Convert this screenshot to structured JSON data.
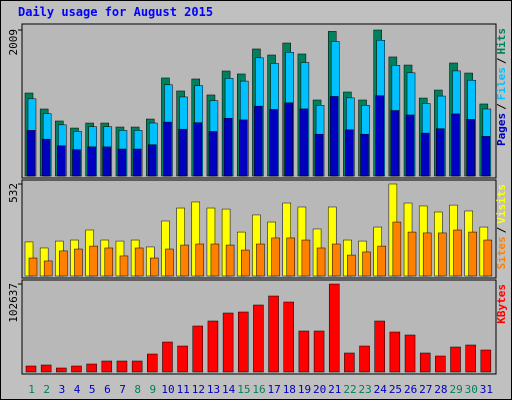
{
  "title": "Daily usage for August 2015",
  "legend_separator": "/",
  "chart_data": [
    {
      "type": "bar",
      "ylim": [
        0,
        2009
      ],
      "yticks": [
        2009
      ],
      "series": [
        {
          "name": "Hits",
          "color": "#00805c",
          "values": [
            1142,
            922,
            757,
            660,
            729,
            729,
            674,
            674,
            784,
            1349,
            1170,
            1335,
            1115,
            1445,
            1404,
            1748,
            1665,
            1830,
            1679,
            1046,
            1990,
            1156,
            1046,
            2009,
            1638,
            1527,
            1073,
            1183,
            1555,
            1417,
            991
          ]
        },
        {
          "name": "Files",
          "color": "#00c0ff",
          "values": [
            1062,
            857,
            704,
            614,
            678,
            678,
            627,
            627,
            729,
            1255,
            1088,
            1242,
            1037,
            1344,
            1306,
            1626,
            1548,
            1702,
            1561,
            973,
            1851,
            1075,
            973,
            1868,
            1523,
            1420,
            998,
            1100,
            1446,
            1318,
            922
          ]
        },
        {
          "name": "Pages",
          "color": "#0000c0",
          "values": [
            628,
            507,
            416,
            363,
            401,
            401,
            371,
            371,
            431,
            742,
            644,
            734,
            613,
            795,
            772,
            961,
            916,
            1007,
            923,
            575,
            1095,
            636,
            575,
            1105,
            901,
            840,
            590,
            651,
            855,
            779,
            545
          ]
        }
      ]
    },
    {
      "type": "bar",
      "ylim": [
        0,
        532
      ],
      "yticks": [
        532
      ],
      "series": [
        {
          "name": "Visits",
          "color": "#ffff00",
          "values": [
            197,
            162,
            202,
            208,
            266,
            208,
            202,
            208,
            168,
            318,
            393,
            428,
            393,
            387,
            254,
            353,
            312,
            422,
            399,
            272,
            399,
            208,
            202,
            283,
            532,
            422,
            405,
            370,
            410,
            376,
            283
          ]
        },
        {
          "name": "Sites",
          "color": "#ff8000",
          "values": [
            104,
            87,
            145,
            156,
            173,
            162,
            116,
            162,
            104,
            156,
            179,
            185,
            185,
            179,
            150,
            185,
            220,
            220,
            208,
            162,
            185,
            121,
            139,
            173,
            312,
            254,
            249,
            249,
            266,
            254,
            208
          ]
        }
      ]
    },
    {
      "type": "bar",
      "ylim": [
        0,
        102637
      ],
      "yticks": [
        102637
      ],
      "categories": [
        "1",
        "2",
        "3",
        "4",
        "5",
        "6",
        "7",
        "8",
        "9",
        "10",
        "11",
        "12",
        "13",
        "14",
        "15",
        "16",
        "17",
        "18",
        "19",
        "20",
        "21",
        "22",
        "23",
        "24",
        "25",
        "26",
        "27",
        "28",
        "29",
        "30",
        "31"
      ],
      "category_colors": [
        "#00805c",
        "#00805c",
        "#0000c0",
        "#0000c0",
        "#0000c0",
        "#0000c0",
        "#0000c0",
        "#00805c",
        "#00805c",
        "#0000c0",
        "#0000c0",
        "#0000c0",
        "#0000c0",
        "#0000c0",
        "#00805c",
        "#00805c",
        "#0000c0",
        "#0000c0",
        "#0000c0",
        "#0000c0",
        "#0000c0",
        "#00805c",
        "#00805c",
        "#0000c0",
        "#0000c0",
        "#0000c0",
        "#0000c0",
        "#0000c0",
        "#00805c",
        "#00805c",
        "#0000c0"
      ],
      "series": [
        {
          "name": "KBytes",
          "color": "#ff0000",
          "values": [
            7000,
            8164,
            4665,
            7000,
            9330,
            12830,
            12830,
            12830,
            20994,
            34990,
            30324,
            53651,
            59483,
            68813,
            69979,
            78144,
            88641,
            81643,
            47820,
            47820,
            102637,
            22160,
            30324,
            59483,
            46653,
            43154,
            22160,
            18661,
            29159,
            31492,
            25660
          ]
        }
      ]
    }
  ]
}
